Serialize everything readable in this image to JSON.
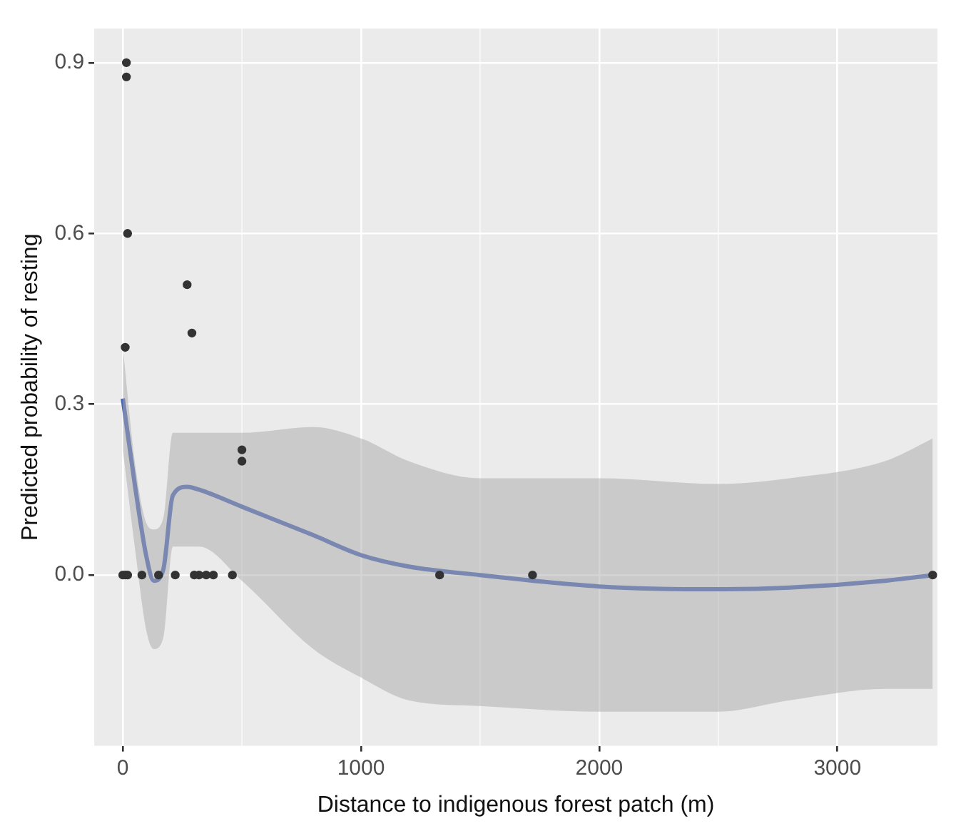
{
  "chart_data": {
    "type": "scatter",
    "xlabel": "Distance to indigenous forest patch (m)",
    "ylabel": "Predicted probability of resting",
    "xlim": [
      -120,
      3420
    ],
    "xticks": [
      0,
      1000,
      2000,
      3000
    ],
    "ylim": [
      -0.3,
      0.96
    ],
    "yticks": [
      {
        "value": 0,
        "label": "0.0"
      },
      0.3,
      0.6,
      0.9
    ],
    "grid": true,
    "legend": false,
    "series": [
      {
        "color": "#333333",
        "marker": "circle",
        "x": [
          15,
          15,
          20,
          10,
          270,
          290,
          500,
          500,
          0,
          10,
          20,
          80,
          150,
          220,
          300,
          320,
          350,
          380,
          460,
          1330,
          1720,
          3400
        ],
        "values": [
          0.9,
          0.875,
          0.6,
          0.4,
          0.51,
          0.425,
          0.22,
          0.2,
          0,
          0,
          0,
          0,
          0,
          0,
          0,
          0,
          0,
          0,
          0,
          0,
          0,
          0
        ]
      },
      {
        "type": "line",
        "color": "#4a67b8",
        "marker": "none",
        "line_style": "solid",
        "x": [
          0,
          50,
          100,
          130,
          170,
          210,
          270,
          320,
          500,
          800,
          1000,
          1200,
          1500,
          2000,
          2500,
          2800,
          3200,
          3400
        ],
        "values": [
          0.31,
          0.16,
          0.03,
          -0.01,
          0.01,
          0.14,
          0.155,
          0.15,
          0.12,
          0.07,
          0.035,
          0.015,
          0.0,
          -0.02,
          -0.025,
          -0.022,
          -0.01,
          0.0
        ],
        "lower": [
          0.22,
          0.05,
          -0.1,
          -0.13,
          -0.11,
          0.05,
          0.05,
          0.05,
          -0.01,
          -0.13,
          -0.18,
          -0.22,
          -0.23,
          -0.24,
          -0.24,
          -0.22,
          -0.2,
          -0.2
        ],
        "upper": [
          0.4,
          0.2,
          0.09,
          0.08,
          0.1,
          0.25,
          0.25,
          0.25,
          0.25,
          0.26,
          0.24,
          0.2,
          0.17,
          0.17,
          0.16,
          0.17,
          0.2,
          0.24
        ]
      }
    ]
  }
}
